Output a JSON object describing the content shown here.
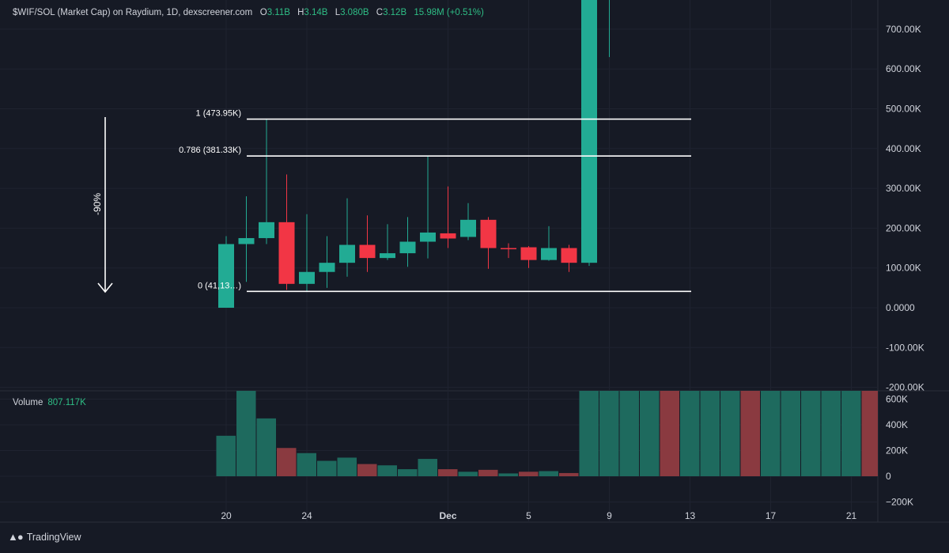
{
  "header": {
    "title": "$WIF/SOL (Market Cap) on Raydium, 1D, dexscreener.com",
    "o_label": "O",
    "o_value": "3.11B",
    "h_label": "H",
    "h_value": "3.14B",
    "l_label": "L",
    "l_value": "3.080B",
    "c_label": "C",
    "c_value": "3.12B",
    "change": "15.98M (+0.51%)"
  },
  "volume_header": {
    "label": "Volume",
    "value": "807.117K"
  },
  "brand": {
    "name": "TradingView"
  },
  "annotation": {
    "arrow_label": "-90%"
  },
  "colors": {
    "up": "#22ab94",
    "down": "#f23645",
    "vol_up": "#1e6a5e",
    "vol_down": "#8a3a40",
    "bg": "#161a25"
  },
  "chart_data": {
    "type": "candlestick",
    "price_axis": {
      "ticks": [
        700000,
        600000,
        500000,
        400000,
        300000,
        200000,
        100000,
        0,
        -100000,
        -200000
      ],
      "tick_labels": [
        "700.00K",
        "600.00K",
        "500.00K",
        "400.00K",
        "300.00K",
        "200.00K",
        "100.00K",
        "0.0000",
        "-100.00K",
        "-200.00K"
      ]
    },
    "volume_axis": {
      "ticks": [
        600000,
        400000,
        200000,
        0,
        -200000
      ],
      "tick_labels": [
        "600K",
        "400K",
        "200K",
        "0",
        "−200K"
      ]
    },
    "x_axis": {
      "ticks": [
        {
          "day": 20,
          "label": "20"
        },
        {
          "day": 24,
          "label": "24"
        },
        {
          "day": 31,
          "label": "Dec"
        },
        {
          "day": 35,
          "label": "5"
        },
        {
          "day": 39,
          "label": "9"
        },
        {
          "day": 43,
          "label": "13"
        },
        {
          "day": 47,
          "label": "17"
        },
        {
          "day": 51,
          "label": "21"
        }
      ]
    },
    "candles": [
      {
        "day": 20,
        "o": 0,
        "h": 180000,
        "l": 0,
        "c": 160000
      },
      {
        "day": 21,
        "o": 160000,
        "h": 280000,
        "l": 65000,
        "c": 175000
      },
      {
        "day": 22,
        "o": 175000,
        "h": 473950,
        "l": 160000,
        "c": 215000
      },
      {
        "day": 23,
        "o": 215000,
        "h": 335000,
        "l": 45000,
        "c": 60000
      },
      {
        "day": 24,
        "o": 60000,
        "h": 235000,
        "l": 40000,
        "c": 90000
      },
      {
        "day": 25,
        "o": 90000,
        "h": 180000,
        "l": 50000,
        "c": 113000
      },
      {
        "day": 26,
        "o": 113000,
        "h": 275000,
        "l": 78000,
        "c": 158000
      },
      {
        "day": 27,
        "o": 158000,
        "h": 232000,
        "l": 90000,
        "c": 125000
      },
      {
        "day": 28,
        "o": 125000,
        "h": 210000,
        "l": 120000,
        "c": 137000
      },
      {
        "day": 29,
        "o": 137000,
        "h": 228000,
        "l": 103000,
        "c": 166000
      },
      {
        "day": 30,
        "o": 166000,
        "h": 381330,
        "l": 124000,
        "c": 189000
      },
      {
        "day": 31,
        "o": 187000,
        "h": 305000,
        "l": 150000,
        "c": 174000
      },
      {
        "day": 32,
        "o": 178000,
        "h": 263000,
        "l": 170000,
        "c": 221000
      },
      {
        "day": 33,
        "o": 221000,
        "h": 228000,
        "l": 98000,
        "c": 150000
      },
      {
        "day": 34,
        "o": 150000,
        "h": 162000,
        "l": 125000,
        "c": 148000
      },
      {
        "day": 35,
        "o": 152000,
        "h": 155000,
        "l": 100000,
        "c": 120000
      },
      {
        "day": 36,
        "o": 120000,
        "h": 205000,
        "l": 118000,
        "c": 150000
      },
      {
        "day": 37,
        "o": 150000,
        "h": 158000,
        "l": 90000,
        "c": 113000
      },
      {
        "day": 38,
        "o": 113000,
        "h": 790000,
        "l": 105000,
        "c": 790000
      },
      {
        "day": 39,
        "o": 790000,
        "h": 790000,
        "l": 630000,
        "c": 790000
      }
    ],
    "fib_levels": [
      {
        "ratio": 1,
        "value": 473950,
        "label": "1 (473.95K)"
      },
      {
        "ratio": 0.786,
        "value": 381330,
        "label": "0.786 (381.33K)"
      },
      {
        "ratio": 0,
        "value": 41130,
        "label": "0 (41,13…)"
      }
    ],
    "volume": [
      {
        "day": 20,
        "value": 315000,
        "dir": "up"
      },
      {
        "day": 21,
        "value": 790000,
        "dir": "up"
      },
      {
        "day": 22,
        "value": 450000,
        "dir": "up"
      },
      {
        "day": 23,
        "value": 220000,
        "dir": "down"
      },
      {
        "day": 24,
        "value": 180000,
        "dir": "up"
      },
      {
        "day": 25,
        "value": 120000,
        "dir": "up"
      },
      {
        "day": 26,
        "value": 145000,
        "dir": "up"
      },
      {
        "day": 27,
        "value": 95000,
        "dir": "down"
      },
      {
        "day": 28,
        "value": 85000,
        "dir": "up"
      },
      {
        "day": 29,
        "value": 55000,
        "dir": "up"
      },
      {
        "day": 30,
        "value": 135000,
        "dir": "up"
      },
      {
        "day": 31,
        "value": 55000,
        "dir": "down"
      },
      {
        "day": 32,
        "value": 35000,
        "dir": "up"
      },
      {
        "day": 33,
        "value": 50000,
        "dir": "down"
      },
      {
        "day": 34,
        "value": 22000,
        "dir": "up"
      },
      {
        "day": 35,
        "value": 35000,
        "dir": "down"
      },
      {
        "day": 36,
        "value": 40000,
        "dir": "up"
      },
      {
        "day": 37,
        "value": 25000,
        "dir": "down"
      },
      {
        "day": 38,
        "value": 790000,
        "dir": "up"
      },
      {
        "day": 39,
        "value": 790000,
        "dir": "up"
      },
      {
        "day": 40,
        "value": 790000,
        "dir": "up"
      },
      {
        "day": 41,
        "value": 790000,
        "dir": "up"
      },
      {
        "day": 42,
        "value": 790000,
        "dir": "down"
      },
      {
        "day": 43,
        "value": 790000,
        "dir": "up"
      },
      {
        "day": 44,
        "value": 790000,
        "dir": "up"
      },
      {
        "day": 45,
        "value": 790000,
        "dir": "up"
      },
      {
        "day": 46,
        "value": 790000,
        "dir": "down"
      },
      {
        "day": 47,
        "value": 790000,
        "dir": "up"
      },
      {
        "day": 48,
        "value": 790000,
        "dir": "up"
      },
      {
        "day": 49,
        "value": 790000,
        "dir": "up"
      },
      {
        "day": 50,
        "value": 790000,
        "dir": "up"
      },
      {
        "day": 51,
        "value": 790000,
        "dir": "up"
      },
      {
        "day": 52,
        "value": 790000,
        "dir": "down"
      }
    ]
  }
}
